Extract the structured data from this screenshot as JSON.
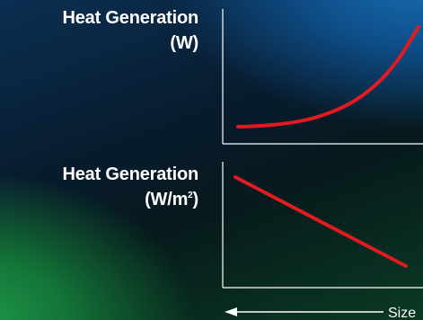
{
  "labels": {
    "top": {
      "line1": "Heat Generation",
      "line2": "(W)"
    },
    "bottom": {
      "line1": "Heat Generation",
      "line2_main": "(W/m",
      "line2_sup": "2",
      "line2_end": ")"
    }
  },
  "colors": {
    "curve": "#e11b22",
    "axis": "#ffffff"
  },
  "chart_data": [
    {
      "type": "line",
      "title": "",
      "xlabel": "Size",
      "ylabel": "Heat Generation (W)",
      "x": [
        0,
        1,
        2,
        3,
        4,
        5,
        6,
        7,
        8,
        9,
        10
      ],
      "series": [
        {
          "values": [
            0.5,
            0.6,
            0.8,
            1.1,
            1.6,
            2.4,
            3.5,
            5.1,
            7.3,
            10.4,
            14.5
          ]
        }
      ],
      "grid": false,
      "legend": "none"
    },
    {
      "type": "line",
      "title": "",
      "xlabel": "Size",
      "ylabel": "Heat Generation (W/m2)",
      "x": [
        0,
        10
      ],
      "series": [
        {
          "values": [
            10,
            0.6
          ]
        }
      ],
      "grid": false,
      "legend": "none"
    }
  ],
  "x_axis": {
    "label": "Size",
    "arrow": "left"
  }
}
